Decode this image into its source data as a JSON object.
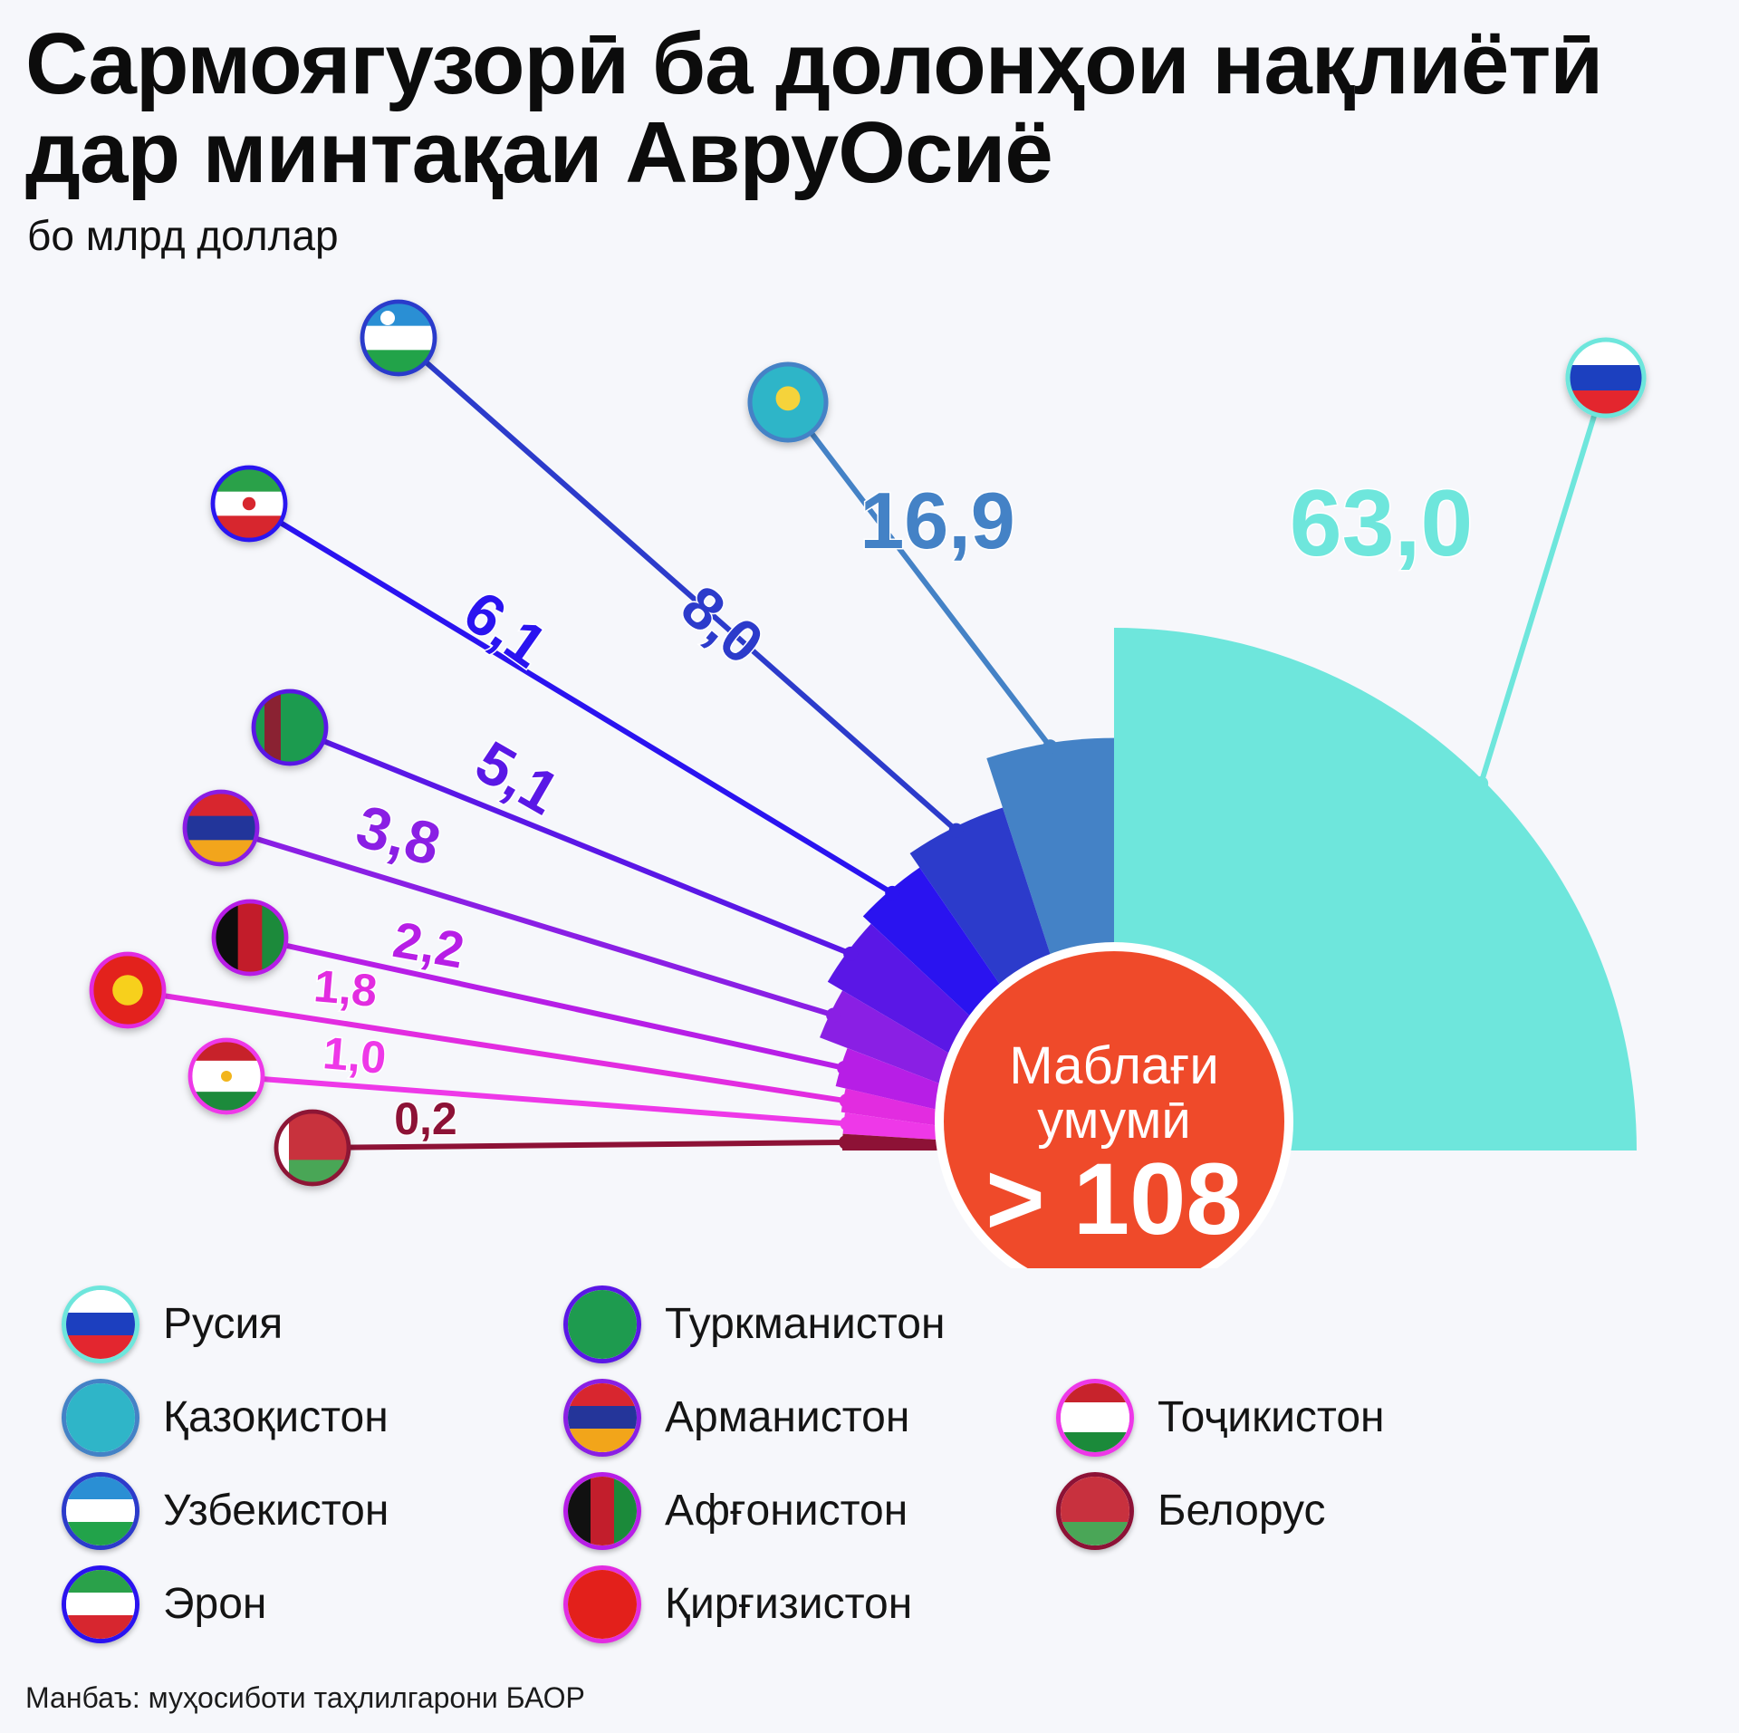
{
  "title": "Сармоягузорӣ ба долонҳои нақлиётӣ дар минтақаи АвруОсиё",
  "subtitle": "бо млрд доллар",
  "source": "Манбаъ: муҳосиботи таҳлилгарони БАОР",
  "colors": {
    "background": "#f6f7fb",
    "total_circle": "#ef4a2a"
  },
  "total": {
    "label_line1": "Маблағи",
    "label_line2": "умумӣ",
    "value": "> 108"
  },
  "chart_data": {
    "type": "polar-bar",
    "title": "Сармоягузорӣ ба долонҳои нақлиётӣ дар минтақаи АвруОсиё",
    "unit": "бо млрд доллар",
    "categories": [
      "Русия",
      "Қазоқистон",
      "Узбекистон",
      "Эрон",
      "Туркманистон",
      "Арманистон",
      "Афғонистон",
      "Қирғизистон",
      "Тоҷикистон",
      "Белорус"
    ],
    "values": [
      63.0,
      16.9,
      8.0,
      6.1,
      5.1,
      3.8,
      2.2,
      1.8,
      1.0,
      0.2
    ],
    "value_labels": [
      "63,0",
      "16,9",
      "8,0",
      "6,1",
      "5,1",
      "3,8",
      "2,2",
      "1,8",
      "1,0",
      "0,2"
    ],
    "colors": [
      "#6ee6dc",
      "#4482c6",
      "#2c3bcb",
      "#2a13f0",
      "#5a17e6",
      "#8a1fe4",
      "#b71ee6",
      "#e22ce0",
      "#ee38e8",
      "#8d1236"
    ],
    "total_label": "> 108"
  },
  "legend": [
    {
      "name": "Русия",
      "flag": "russia-flag"
    },
    {
      "name": "Қазоқистон",
      "flag": "kazakhstan-flag"
    },
    {
      "name": "Узбекистон",
      "flag": "uzbekistan-flag"
    },
    {
      "name": "Эрон",
      "flag": "iran-flag"
    },
    {
      "name": "Туркманистон",
      "flag": "turkmenistan-flag"
    },
    {
      "name": "Арманистон",
      "flag": "armenia-flag"
    },
    {
      "name": "Афғонистон",
      "flag": "afghanistan-flag"
    },
    {
      "name": "Қирғизистон",
      "flag": "kyrgyzstan-flag"
    },
    {
      "name": "Тоҷикистон",
      "flag": "tajikistan-flag"
    },
    {
      "name": "Белорус",
      "flag": "belarus-flag"
    }
  ]
}
